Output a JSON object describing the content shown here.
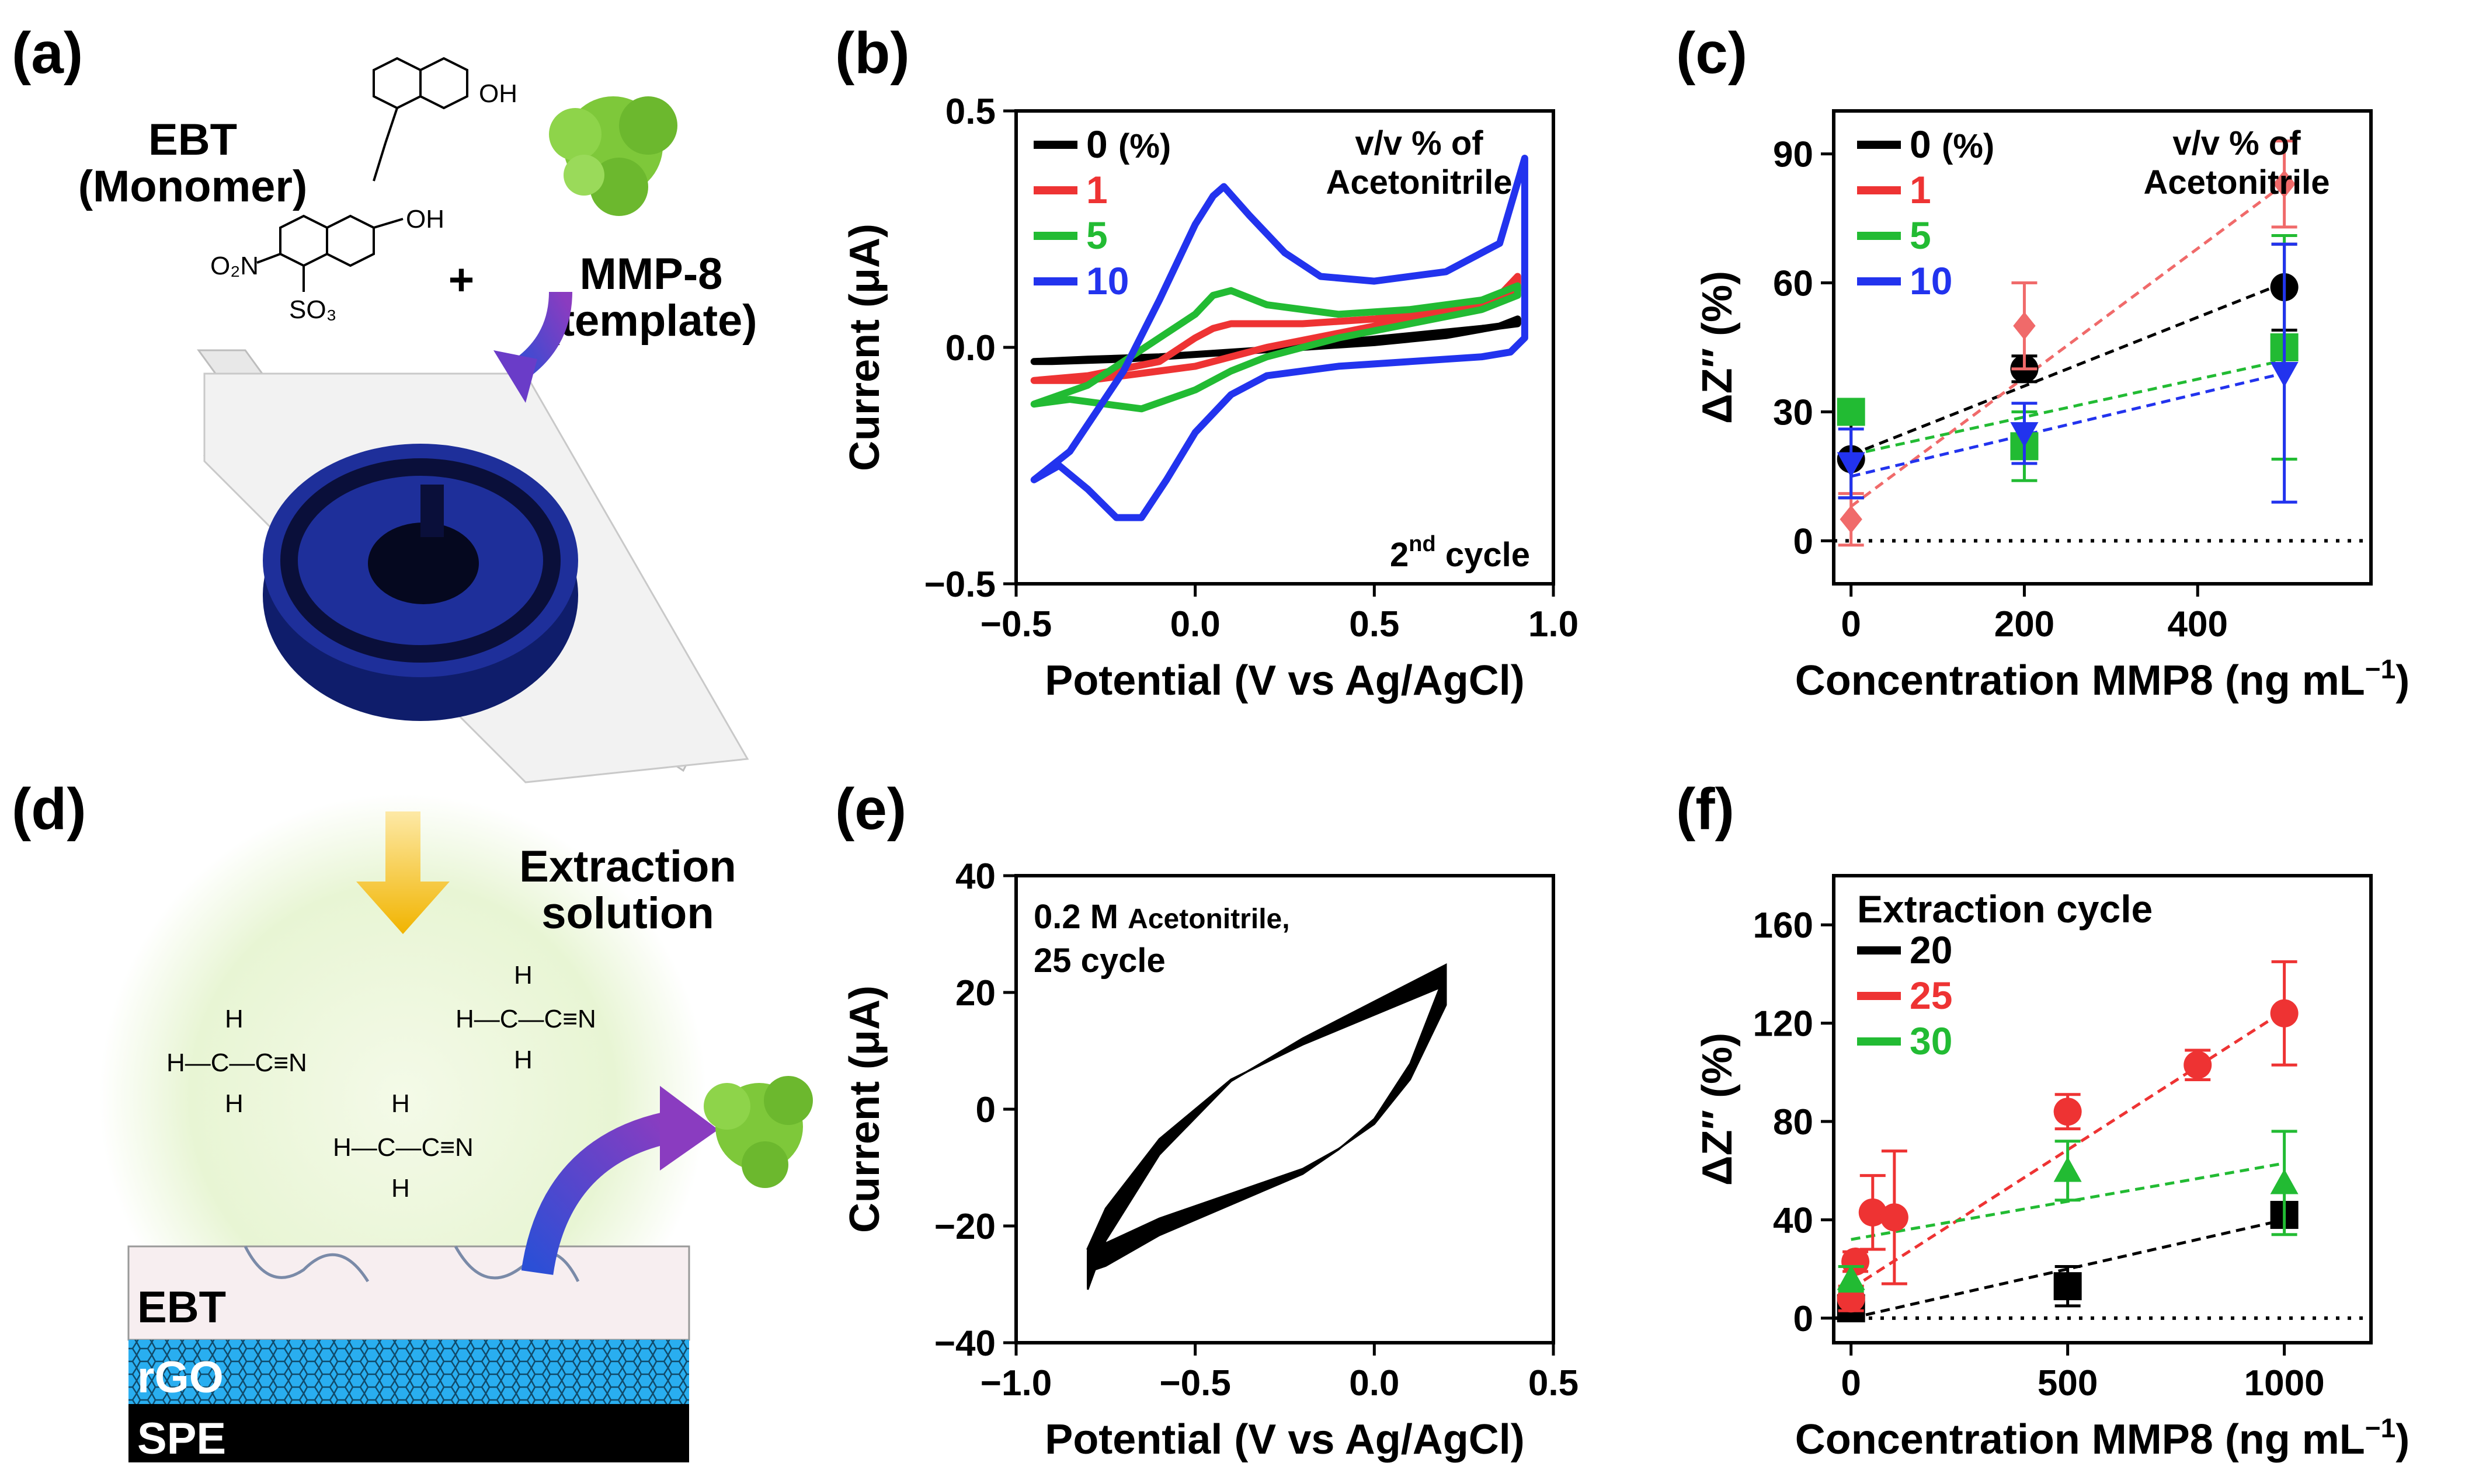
{
  "colors": {
    "black": "#000000",
    "red": "#ee3333",
    "green": "#22bb33",
    "blue": "#2233ee",
    "pink": "#f06a6a",
    "mmp": "#7ec83a",
    "chip": "#1e2f9a",
    "rgo": "#29aef0"
  },
  "panel_a": {
    "label": "(a)",
    "monomer_name": "EBT",
    "monomer_role": "(Monomer)",
    "template_name": "MMP-8",
    "template_role": "(template)",
    "plus": "+",
    "oh1": "OH",
    "oh2": "OH",
    "no2": "O₂N",
    "so3": "SO₃"
  },
  "panel_d": {
    "label": "(d)",
    "extraction_title_1": "Extraction",
    "extraction_title_2": "solution",
    "molecule_text": "H—C—C≡N",
    "molecule_h": "H",
    "layer_ebt": "EBT",
    "layer_rgo": "rGO",
    "layer_spe": "SPE"
  },
  "chart_data": [
    {
      "id": "b",
      "panel_label": "(b)",
      "type": "line",
      "title": "",
      "xlabel": "Potential (V vs Ag/AgCl)",
      "ylabel": "Current (μA)",
      "xlim": [
        -0.5,
        1.0
      ],
      "ylim": [
        -0.5,
        0.5
      ],
      "xticks": [
        -0.5,
        0.0,
        0.5,
        1.0
      ],
      "xtick_labels": [
        "−0.5",
        "0.0",
        "0.5",
        "1.0"
      ],
      "yticks": [
        -0.5,
        0.0,
        0.5
      ],
      "ytick_labels": [
        "−0.5",
        "0.0",
        "0.5"
      ],
      "legend_title_1": "v/v % of",
      "legend_title_2": "Acetonitrile",
      "legend_unit": "(%)",
      "annotation": "2",
      "annotation_sup": "nd",
      "annotation_tail": " cycle",
      "series": [
        {
          "name": "0",
          "color": "#000000",
          "x": [
            -0.45,
            -0.3,
            -0.1,
            0.1,
            0.3,
            0.5,
            0.7,
            0.85,
            0.9,
            0.9,
            0.8,
            0.6,
            0.4,
            0.2,
            0.0,
            -0.2,
            -0.4,
            -0.45
          ],
          "y": [
            -0.03,
            -0.025,
            -0.02,
            -0.01,
            0.0,
            0.01,
            0.025,
            0.045,
            0.06,
            0.05,
            0.04,
            0.025,
            0.01,
            -0.005,
            -0.015,
            -0.025,
            -0.03,
            -0.03
          ]
        },
        {
          "name": "1",
          "color": "#ee3333",
          "x": [
            -0.45,
            -0.3,
            -0.1,
            0.0,
            0.05,
            0.1,
            0.3,
            0.5,
            0.7,
            0.85,
            0.9,
            0.9,
            0.8,
            0.6,
            0.4,
            0.2,
            0.1,
            0.0,
            -0.1,
            -0.2,
            -0.3,
            -0.45
          ],
          "y": [
            -0.07,
            -0.06,
            -0.03,
            0.02,
            0.04,
            0.05,
            0.05,
            0.06,
            0.08,
            0.11,
            0.15,
            0.12,
            0.09,
            0.06,
            0.03,
            0.0,
            -0.02,
            -0.04,
            -0.05,
            -0.06,
            -0.07,
            -0.07
          ]
        },
        {
          "name": "5",
          "color": "#22bb33",
          "x": [
            -0.45,
            -0.3,
            -0.1,
            0.0,
            0.05,
            0.1,
            0.2,
            0.4,
            0.6,
            0.8,
            0.9,
            0.9,
            0.8,
            0.6,
            0.4,
            0.2,
            0.1,
            0.0,
            -0.15,
            -0.25,
            -0.35,
            -0.45
          ],
          "y": [
            -0.12,
            -0.08,
            0.02,
            0.07,
            0.11,
            0.12,
            0.09,
            0.07,
            0.08,
            0.1,
            0.13,
            0.11,
            0.08,
            0.05,
            0.02,
            -0.02,
            -0.05,
            -0.09,
            -0.13,
            -0.12,
            -0.11,
            -0.12
          ]
        },
        {
          "name": "10",
          "color": "#2233ee",
          "x": [
            -0.45,
            -0.35,
            -0.2,
            -0.1,
            0.0,
            0.05,
            0.08,
            0.15,
            0.25,
            0.35,
            0.5,
            0.7,
            0.85,
            0.92,
            0.92,
            0.88,
            0.8,
            0.6,
            0.4,
            0.2,
            0.1,
            0.0,
            -0.08,
            -0.15,
            -0.22,
            -0.3,
            -0.38,
            -0.45
          ],
          "y": [
            -0.28,
            -0.22,
            -0.05,
            0.1,
            0.26,
            0.32,
            0.34,
            0.28,
            0.2,
            0.15,
            0.14,
            0.16,
            0.22,
            0.4,
            0.02,
            -0.01,
            -0.02,
            -0.03,
            -0.04,
            -0.06,
            -0.1,
            -0.18,
            -0.28,
            -0.36,
            -0.36,
            -0.3,
            -0.25,
            -0.28
          ]
        }
      ]
    },
    {
      "id": "c",
      "panel_label": "(c)",
      "type": "scatter",
      "title": "",
      "xlabel": "Concentration MMP8 (ng mL",
      "xlabel_sup": "−1",
      "xlabel_tail": ")",
      "ylabel": "ΔZ″ (%)",
      "xlim": [
        -20,
        600
      ],
      "ylim": [
        -10,
        100
      ],
      "xticks": [
        0,
        200,
        400
      ],
      "xtick_labels": [
        "0",
        "200",
        "400"
      ],
      "yticks": [
        0,
        30,
        60,
        90
      ],
      "ytick_labels": [
        "0",
        "30",
        "60",
        "90"
      ],
      "legend_title_1": "v/v % of",
      "legend_title_2": "Acetonitrile",
      "legend_unit": "(%)",
      "zero_line": true,
      "series": [
        {
          "name": "0",
          "color": "#000000",
          "marker": "circle",
          "x": [
            0,
            200,
            500
          ],
          "y": [
            19,
            40,
            59
          ],
          "err": [
            9,
            3,
            10
          ],
          "fit": [
            20,
            60
          ]
        },
        {
          "name": "1",
          "color": "#f06a6a",
          "marker": "diamond",
          "x": [
            0,
            200,
            500
          ],
          "y": [
            5,
            50,
            83
          ],
          "err": [
            6,
            10,
            10
          ],
          "fit": [
            8,
            83
          ]
        },
        {
          "name": "5",
          "color": "#22bb33",
          "marker": "square",
          "x": [
            0,
            200,
            500
          ],
          "y": [
            30,
            22,
            45
          ],
          "err": [
            0,
            8,
            26
          ],
          "fit": [
            20,
            42
          ]
        },
        {
          "name": "10",
          "color": "#2233ee",
          "marker": "triangle-down",
          "x": [
            0,
            200,
            500
          ],
          "y": [
            18,
            25,
            39
          ],
          "err": [
            8,
            7,
            30
          ],
          "fit": [
            15,
            39
          ]
        }
      ]
    },
    {
      "id": "e",
      "panel_label": "(e)",
      "type": "line",
      "title": "",
      "xlabel": "Potential (V vs Ag/AgCl)",
      "ylabel": "Current (μA)",
      "xlim": [
        -1.0,
        0.5
      ],
      "ylim": [
        -40,
        40
      ],
      "xticks": [
        -1.0,
        -0.5,
        0.0,
        0.5
      ],
      "xtick_labels": [
        "−1.0",
        "−0.5",
        "0.0",
        "0.5"
      ],
      "yticks": [
        -40,
        -20,
        0,
        20,
        40
      ],
      "ytick_labels": [
        "−40",
        "−20",
        "0",
        "20",
        "40"
      ],
      "annotation_1": "0.2 M",
      "annotation_1b": "Acetonitrile,",
      "annotation_2": "25 cycle",
      "cycles": 25,
      "series": [
        {
          "name": "cycles",
          "color": "#000000",
          "x": [
            -0.8,
            -0.75,
            -0.6,
            -0.4,
            -0.2,
            0.0,
            0.1,
            0.2,
            0.2,
            0.1,
            0.0,
            -0.1,
            -0.2,
            -0.4,
            -0.6,
            -0.75,
            -0.8
          ],
          "y": [
            -28,
            -20,
            -6,
            6,
            13,
            19,
            22,
            25,
            21,
            6,
            -3,
            -8,
            -12,
            -17,
            -22,
            -27,
            -28
          ]
        }
      ]
    },
    {
      "id": "f",
      "panel_label": "(f)",
      "type": "scatter",
      "title": "",
      "xlabel": "Concentration MMP8 (ng mL",
      "xlabel_sup": "−1",
      "xlabel_tail": ")",
      "ylabel": "ΔZ″ (%)",
      "xlim": [
        -40,
        1200
      ],
      "ylim": [
        -10,
        180
      ],
      "xticks": [
        0,
        500,
        1000
      ],
      "xtick_labels": [
        "0",
        "500",
        "1000"
      ],
      "yticks": [
        0,
        40,
        80,
        120,
        160
      ],
      "ytick_labels": [
        "0",
        "40",
        "80",
        "120",
        "160"
      ],
      "legend_title": "Extraction cycle",
      "zero_line": true,
      "series": [
        {
          "name": "20",
          "color": "#000000",
          "marker": "square",
          "x": [
            0,
            500,
            1000
          ],
          "y": [
            4,
            13,
            42
          ],
          "err": [
            3,
            8,
            4
          ],
          "fit": [
            0,
            40
          ]
        },
        {
          "name": "25",
          "color": "#ee3333",
          "marker": "circle",
          "x": [
            0,
            10,
            50,
            100,
            500,
            800,
            1000
          ],
          "y": [
            8,
            23,
            43,
            41,
            84,
            103,
            124
          ],
          "err": [
            5,
            4,
            15,
            27,
            7,
            6,
            21
          ],
          "fit": [
            12,
            125
          ]
        },
        {
          "name": "30",
          "color": "#22bb33",
          "marker": "triangle-up",
          "x": [
            0,
            500,
            1000
          ],
          "y": [
            16,
            60,
            55
          ],
          "err": [
            5,
            12,
            21
          ],
          "fit": [
            32,
            63
          ]
        }
      ]
    }
  ]
}
